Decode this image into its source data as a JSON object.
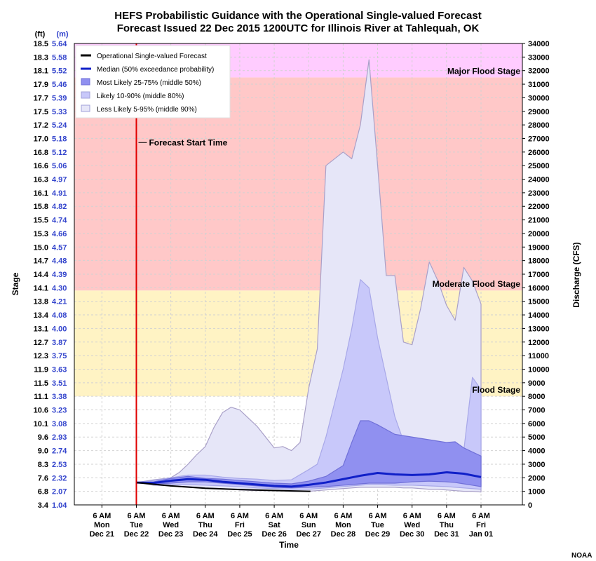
{
  "chart_data": {
    "type": "area",
    "title": "HEFS Probabilistic Guidance with the Operational Single-valued Forecast",
    "subtitle": "Forecast Issued 22 Dec 2015 1200UTC for Illinois River at Tahlequah, OK",
    "xlabel": "Time",
    "ylabel_left": "Stage",
    "ylabel_right": "Discharge (CFS)",
    "left_unit_ft": "(ft)",
    "left_unit_m": "(m)",
    "credit": "NOAA",
    "x_ticks": [
      {
        "top": "6 AM",
        "mid": "Mon",
        "bot": "Dec 21",
        "day": 0
      },
      {
        "top": "6 AM",
        "mid": "Tue",
        "bot": "Dec 22",
        "day": 1
      },
      {
        "top": "6 AM",
        "mid": "Wed",
        "bot": "Dec 23",
        "day": 2
      },
      {
        "top": "6 AM",
        "mid": "Thu",
        "bot": "Dec 24",
        "day": 3
      },
      {
        "top": "6 AM",
        "mid": "Fri",
        "bot": "Dec 25",
        "day": 4
      },
      {
        "top": "6 AM",
        "mid": "Sat",
        "bot": "Dec 26",
        "day": 5
      },
      {
        "top": "6 AM",
        "mid": "Sun",
        "bot": "Dec 27",
        "day": 6
      },
      {
        "top": "6 AM",
        "mid": "Mon",
        "bot": "Dec 28",
        "day": 7
      },
      {
        "top": "6 AM",
        "mid": "Tue",
        "bot": "Dec 29",
        "day": 8
      },
      {
        "top": "6 AM",
        "mid": "Wed",
        "bot": "Dec 30",
        "day": 9
      },
      {
        "top": "6 AM",
        "mid": "Thu",
        "bot": "Dec 31",
        "day": 10
      },
      {
        "top": "6 AM",
        "mid": "Fri",
        "bot": "Jan 01",
        "day": 11
      }
    ],
    "x_range_days": [
      -0.8,
      12.2
    ],
    "flow_range": [
      0,
      34000
    ],
    "flow_ticks": [
      0,
      1000,
      2000,
      3000,
      4000,
      5000,
      6000,
      7000,
      8000,
      9000,
      10000,
      11000,
      12000,
      13000,
      14000,
      15000,
      16000,
      17000,
      18000,
      19000,
      20000,
      21000,
      22000,
      23000,
      24000,
      25000,
      26000,
      27000,
      28000,
      29000,
      30000,
      31000,
      32000,
      33000,
      34000
    ],
    "stage_ft_labels": [
      "3.4",
      "6.8",
      "7.6",
      "8.3",
      "9.0",
      "9.6",
      "10.1",
      "10.6",
      "11.1",
      "11.5",
      "11.9",
      "12.3",
      "12.7",
      "13.1",
      "13.4",
      "13.8",
      "14.1",
      "14.4",
      "14.7",
      "15.0",
      "15.3",
      "15.5",
      "15.8",
      "16.1",
      "16.3",
      "16.6",
      "16.8",
      "17.0",
      "17.2",
      "17.5",
      "17.7",
      "17.9",
      "18.1",
      "18.3",
      "18.5"
    ],
    "stage_m_labels": [
      "1.04",
      "2.07",
      "2.32",
      "2.53",
      "2.74",
      "2.93",
      "3.08",
      "3.23",
      "3.38",
      "3.51",
      "3.63",
      "3.75",
      "3.87",
      "4.00",
      "4.08",
      "4.21",
      "4.30",
      "4.39",
      "4.48",
      "4.57",
      "4.66",
      "4.74",
      "4.82",
      "4.91",
      "4.97",
      "5.06",
      "5.12",
      "5.18",
      "5.24",
      "5.33",
      "5.39",
      "5.46",
      "5.52",
      "5.58",
      "5.64"
    ],
    "flood_stages": [
      {
        "name": "Flood Stage",
        "flow": 8000,
        "color": "#FFF3C4"
      },
      {
        "name": "Moderate Flood Stage",
        "flow": 15800,
        "color": "#FFC8C8"
      },
      {
        "name": "Major Flood Stage",
        "flow": 31500,
        "color": "#FFCCFF"
      }
    ],
    "forecast_start_day": 1,
    "forecast_start_label": "Forecast Start Time",
    "legend": [
      {
        "key": "op",
        "label": "Operational Single-valued Forecast"
      },
      {
        "key": "median",
        "label": "Median (50% exceedance probability)"
      },
      {
        "key": "b50",
        "label": "Most Likely 25-75% (middle 50%)"
      },
      {
        "key": "b80",
        "label": "Likely 10-90% (middle 80%)"
      },
      {
        "key": "b90",
        "label": "Less Likely 5-95% (middle 90%)"
      }
    ],
    "colors": {
      "op": "#000000",
      "median": "#1020C8",
      "b50": "#9090F0",
      "b80": "#C8C8FA",
      "b90": "#E6E6F8",
      "b90_edge": "#A9A0C8",
      "start_line": "#E00000",
      "m_labels": "#3344CC"
    },
    "series": {
      "op": {
        "x": [
          1,
          2,
          3,
          4,
          5,
          6,
          6.05
        ],
        "y": [
          1650,
          1400,
          1230,
          1130,
          1060,
          1000,
          1000
        ]
      },
      "median": {
        "x": [
          1,
          1.5,
          2,
          2.5,
          3,
          3.5,
          4,
          4.5,
          5,
          5.5,
          6,
          6.5,
          7,
          7.5,
          8,
          8.5,
          9,
          9.5,
          10,
          10.5,
          11
        ],
        "y": [
          1650,
          1620,
          1780,
          1900,
          1850,
          1700,
          1600,
          1500,
          1400,
          1350,
          1480,
          1650,
          1900,
          2150,
          2350,
          2250,
          2200,
          2250,
          2400,
          2300,
          2050
        ]
      },
      "b50": {
        "x": [
          1,
          1.5,
          2,
          2.5,
          3,
          3.5,
          4,
          4.5,
          5,
          5.5,
          6,
          6.5,
          7,
          7.25,
          7.5,
          7.75,
          8,
          8.5,
          9,
          9.5,
          10,
          10.25,
          10.5,
          10.75,
          11
        ],
        "upper": [
          1650,
          1700,
          1950,
          2100,
          1950,
          1900,
          1800,
          1700,
          1600,
          1550,
          1750,
          2100,
          2900,
          4600,
          6200,
          6200,
          5900,
          5200,
          5000,
          4800,
          4600,
          4650,
          4200,
          3900,
          3600
        ],
        "lower": [
          1650,
          1550,
          1600,
          1700,
          1700,
          1600,
          1500,
          1400,
          1300,
          1250,
          1300,
          1350,
          1450,
          1500,
          1550,
          1600,
          1600,
          1600,
          1700,
          1750,
          1700,
          1650,
          1550,
          1450,
          1350
        ]
      },
      "b80": {
        "x": [
          1,
          1.5,
          2,
          2.5,
          3,
          3.5,
          4,
          4.5,
          5,
          5.5,
          6,
          6.25,
          6.5,
          7,
          7.25,
          7.5,
          7.75,
          8,
          8.5,
          8.75,
          9,
          9.5,
          10,
          10.25,
          10.5,
          10.75,
          11
        ],
        "upper": [
          1650,
          1800,
          2000,
          2200,
          2200,
          2050,
          1950,
          1900,
          1800,
          1850,
          2600,
          3000,
          5000,
          10000,
          13000,
          16600,
          16000,
          12300,
          6500,
          4700,
          4000,
          3400,
          3400,
          3300,
          4000,
          9400,
          8500
        ],
        "lower": [
          1650,
          1500,
          1500,
          1500,
          1450,
          1400,
          1350,
          1250,
          1200,
          1150,
          1150,
          1200,
          1250,
          1350,
          1400,
          1450,
          1500,
          1500,
          1450,
          1450,
          1450,
          1400,
          1350,
          1300,
          1250,
          1200,
          1150
        ]
      },
      "b90": {
        "x": [
          1,
          1.5,
          2,
          2.25,
          2.5,
          2.75,
          3,
          3.25,
          3.5,
          3.75,
          4,
          4.5,
          5,
          5.25,
          5.5,
          5.75,
          6,
          6.25,
          6.5,
          7,
          7.25,
          7.5,
          7.75,
          8,
          8.25,
          8.5,
          8.75,
          9,
          9.25,
          9.5,
          9.75,
          10,
          10.25,
          10.5,
          10.75,
          11
        ],
        "upper": [
          1650,
          1850,
          2000,
          2400,
          3000,
          3700,
          4300,
          5700,
          6800,
          7200,
          7000,
          5800,
          4200,
          4300,
          4000,
          4600,
          8600,
          11500,
          25000,
          26000,
          25500,
          28000,
          32800,
          25000,
          16900,
          16900,
          12000,
          11800,
          14500,
          17900,
          16500,
          14700,
          13600,
          17500,
          16500,
          14800
        ],
        "lower": [
          1650,
          1450,
          1400,
          1380,
          1350,
          1300,
          1250,
          1220,
          1200,
          1150,
          1100,
          1050,
          1050,
          1050,
          1000,
          1000,
          1000,
          1050,
          1100,
          1200,
          1250,
          1300,
          1300,
          1300,
          1300,
          1300,
          1250,
          1250,
          1200,
          1150,
          1150,
          1100,
          1050,
          1000,
          1000,
          950
        ]
      }
    }
  }
}
